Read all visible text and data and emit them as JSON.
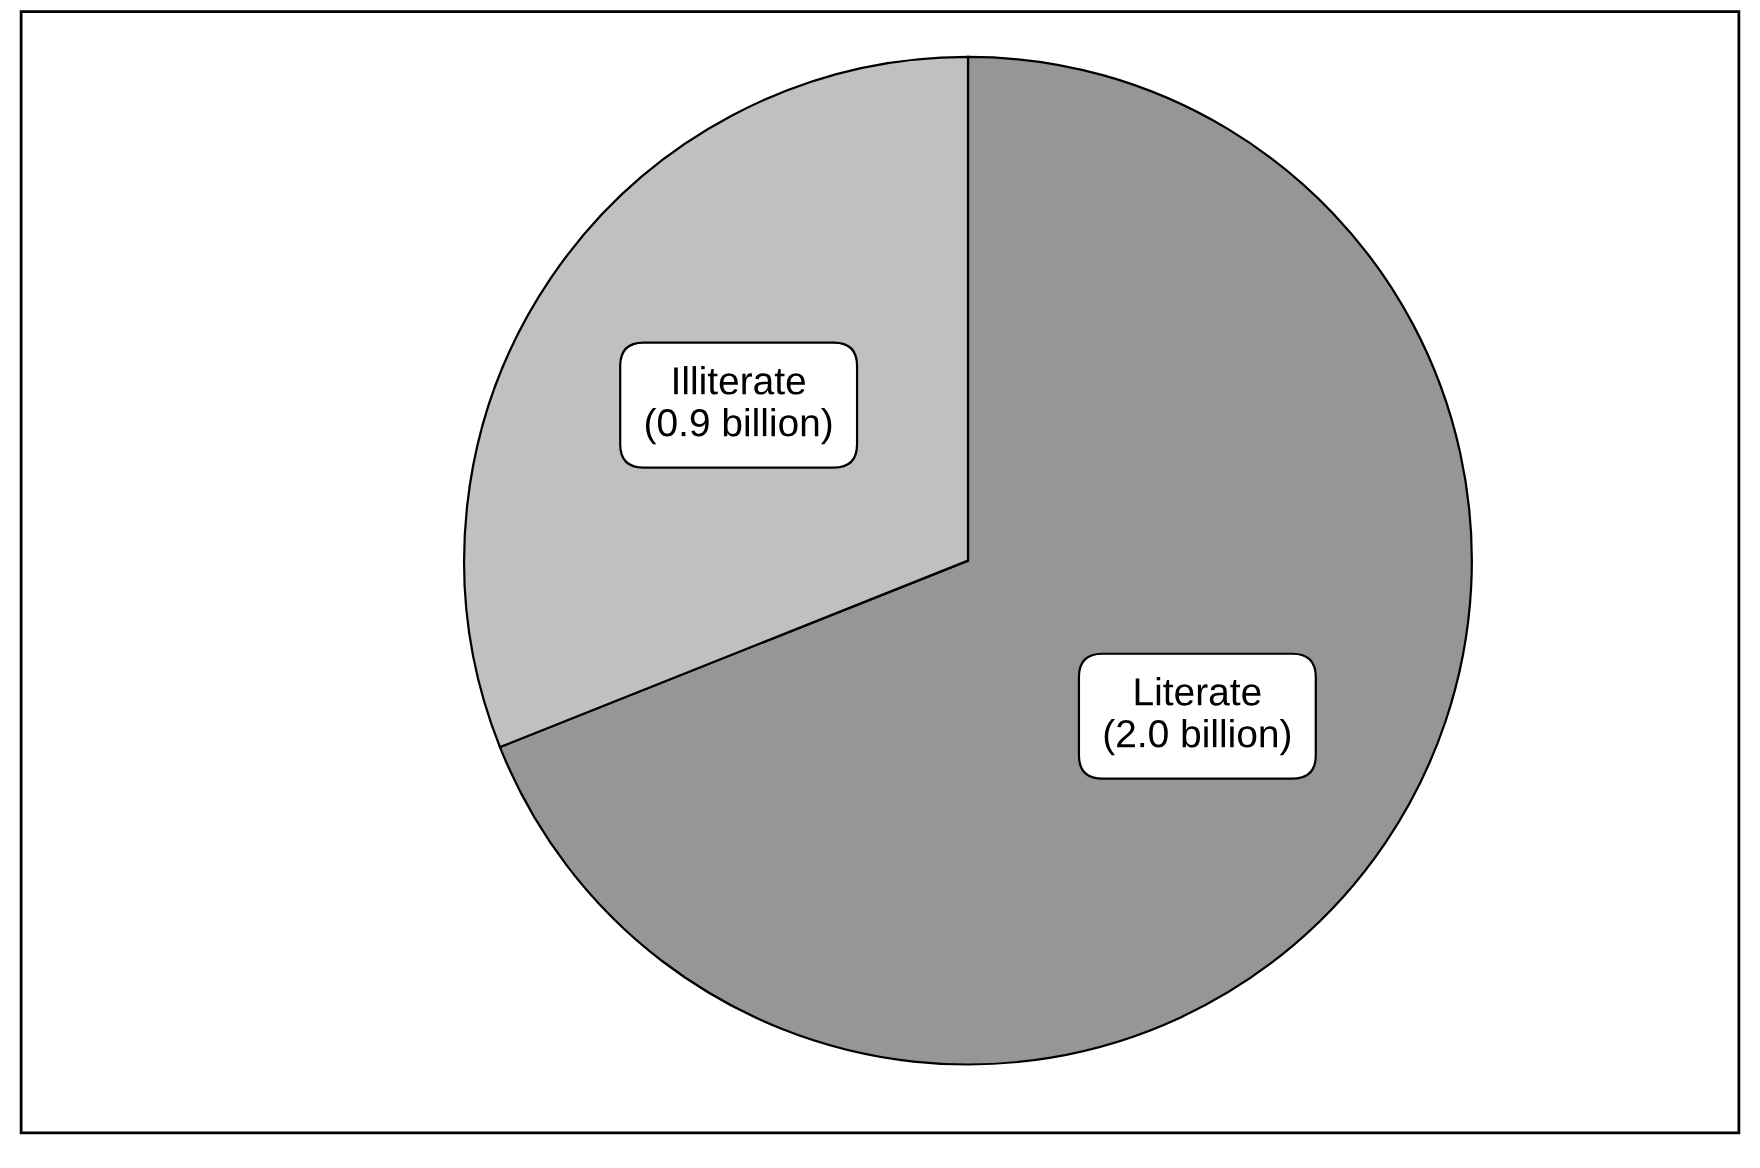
{
  "chart_data": {
    "type": "pie",
    "categories": [
      "Literate",
      "Illiterate"
    ],
    "values": [
      2.0,
      0.9
    ],
    "value_labels": [
      "(2.0 billion)",
      "(0.9 billion)"
    ],
    "colors": [
      "#969696",
      "#c0c0c0"
    ]
  }
}
